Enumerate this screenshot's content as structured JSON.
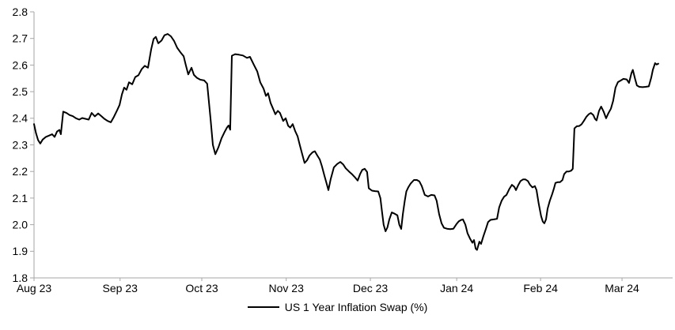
{
  "chart_data": {
    "type": "line",
    "title": "",
    "grid": false,
    "legend_position": "bottom-center",
    "styles": {
      "line_color": "#000000",
      "line_width": 2,
      "axis_color": "#a6a6a6",
      "label_color": "#000000",
      "font_size": 14,
      "background": "#ffffff"
    },
    "x_axis": {
      "kind": "time",
      "range_days": [
        0,
        236
      ],
      "tick_days": [
        0,
        31.8,
        62,
        93.2,
        124.3,
        156.2,
        187.2,
        217.3
      ],
      "tick_labels": [
        "Aug 23",
        "Sep 23",
        "Oct 23",
        "Nov 23",
        "Dec 23",
        "Jan 24",
        "Feb 24",
        "Mar 24"
      ]
    },
    "y_axis": {
      "range": [
        1.8,
        2.8
      ],
      "tick_values": [
        2.8,
        2.7,
        2.6,
        2.5,
        2.4,
        2.3,
        2.2,
        2.1,
        2.0,
        1.9,
        1.8
      ],
      "tick_labels": [
        "2.8",
        "2.7",
        "2.6",
        "2.5",
        "2.4",
        "2.3",
        "2.2",
        "2.1",
        "2.0",
        "1.9",
        "1.8"
      ]
    },
    "series": [
      {
        "name": "US 1 Year Inflation Swap (%)",
        "points": [
          [
            0,
            2.378
          ],
          [
            0.7,
            2.345
          ],
          [
            1.5,
            2.318
          ],
          [
            2.3,
            2.305
          ],
          [
            3.2,
            2.32
          ],
          [
            4.4,
            2.33
          ],
          [
            5.6,
            2.335
          ],
          [
            6.7,
            2.34
          ],
          [
            7.6,
            2.33
          ],
          [
            8.5,
            2.35
          ],
          [
            9.4,
            2.356
          ],
          [
            9.9,
            2.34
          ],
          [
            10.8,
            2.425
          ],
          [
            12,
            2.42
          ],
          [
            13.2,
            2.412
          ],
          [
            14.3,
            2.408
          ],
          [
            15.5,
            2.4
          ],
          [
            16.7,
            2.395
          ],
          [
            17.8,
            2.401
          ],
          [
            19,
            2.398
          ],
          [
            20.2,
            2.395
          ],
          [
            21.3,
            2.42
          ],
          [
            22.5,
            2.407
          ],
          [
            23.7,
            2.418
          ],
          [
            24.9,
            2.408
          ],
          [
            26,
            2.398
          ],
          [
            27.2,
            2.39
          ],
          [
            28.4,
            2.385
          ],
          [
            29.5,
            2.405
          ],
          [
            30.7,
            2.43
          ],
          [
            31.6,
            2.45
          ],
          [
            32.5,
            2.49
          ],
          [
            33.3,
            2.515
          ],
          [
            34.2,
            2.507
          ],
          [
            35.1,
            2.535
          ],
          [
            36.3,
            2.528
          ],
          [
            37.4,
            2.555
          ],
          [
            38.6,
            2.562
          ],
          [
            39.8,
            2.585
          ],
          [
            40.9,
            2.597
          ],
          [
            42.1,
            2.59
          ],
          [
            43.3,
            2.66
          ],
          [
            44.2,
            2.698
          ],
          [
            45,
            2.706
          ],
          [
            45.9,
            2.682
          ],
          [
            47.1,
            2.692
          ],
          [
            48.2,
            2.712
          ],
          [
            49.4,
            2.717
          ],
          [
            50.6,
            2.708
          ],
          [
            51.8,
            2.69
          ],
          [
            52.9,
            2.665
          ],
          [
            54.1,
            2.648
          ],
          [
            55.3,
            2.633
          ],
          [
            56.1,
            2.6
          ],
          [
            57,
            2.565
          ],
          [
            58.2,
            2.59
          ],
          [
            59.1,
            2.563
          ],
          [
            60.2,
            2.552
          ],
          [
            61.4,
            2.545
          ],
          [
            62.9,
            2.542
          ],
          [
            64,
            2.53
          ],
          [
            65.2,
            2.4
          ],
          [
            66.1,
            2.3
          ],
          [
            67,
            2.265
          ],
          [
            68.1,
            2.29
          ],
          [
            69.3,
            2.325
          ],
          [
            70.5,
            2.35
          ],
          [
            71.3,
            2.365
          ],
          [
            71.9,
            2.373
          ],
          [
            72.5,
            2.357
          ],
          [
            73.1,
            2.635
          ],
          [
            74.3,
            2.641
          ],
          [
            75.7,
            2.639
          ],
          [
            77.2,
            2.636
          ],
          [
            78.7,
            2.627
          ],
          [
            79.8,
            2.631
          ],
          [
            81.3,
            2.6
          ],
          [
            82.5,
            2.576
          ],
          [
            83.6,
            2.535
          ],
          [
            84.8,
            2.512
          ],
          [
            85.7,
            2.484
          ],
          [
            86.5,
            2.494
          ],
          [
            87.4,
            2.458
          ],
          [
            88.3,
            2.437
          ],
          [
            89.2,
            2.415
          ],
          [
            90.1,
            2.428
          ],
          [
            90.9,
            2.42
          ],
          [
            92.1,
            2.39
          ],
          [
            93,
            2.4
          ],
          [
            93.9,
            2.372
          ],
          [
            94.7,
            2.365
          ],
          [
            95.6,
            2.378
          ],
          [
            96.5,
            2.352
          ],
          [
            97.4,
            2.332
          ],
          [
            98.2,
            2.3
          ],
          [
            99.1,
            2.265
          ],
          [
            100,
            2.232
          ],
          [
            100.9,
            2.242
          ],
          [
            101.8,
            2.26
          ],
          [
            102.9,
            2.272
          ],
          [
            103.8,
            2.276
          ],
          [
            104.7,
            2.26
          ],
          [
            105.6,
            2.245
          ],
          [
            106.4,
            2.22
          ],
          [
            107.3,
            2.185
          ],
          [
            108.2,
            2.152
          ],
          [
            108.8,
            2.13
          ],
          [
            109.6,
            2.17
          ],
          [
            110.8,
            2.215
          ],
          [
            112,
            2.228
          ],
          [
            113.2,
            2.236
          ],
          [
            114.3,
            2.226
          ],
          [
            115.2,
            2.212
          ],
          [
            116.4,
            2.2
          ],
          [
            117.5,
            2.19
          ],
          [
            118.4,
            2.18
          ],
          [
            119.6,
            2.166
          ],
          [
            120.5,
            2.19
          ],
          [
            121.3,
            2.206
          ],
          [
            122.2,
            2.21
          ],
          [
            123.1,
            2.198
          ],
          [
            123.7,
            2.137
          ],
          [
            124.9,
            2.128
          ],
          [
            126,
            2.126
          ],
          [
            127.2,
            2.125
          ],
          [
            128,
            2.1
          ],
          [
            128.6,
            2.05
          ],
          [
            129.2,
            2.0
          ],
          [
            129.9,
            1.975
          ],
          [
            130.6,
            1.99
          ],
          [
            131.3,
            2.02
          ],
          [
            132.2,
            2.046
          ],
          [
            133.1,
            2.042
          ],
          [
            134.3,
            2.035
          ],
          [
            135,
            2.0
          ],
          [
            135.7,
            1.984
          ],
          [
            136.3,
            2.04
          ],
          [
            137,
            2.09
          ],
          [
            137.6,
            2.125
          ],
          [
            138.3,
            2.14
          ],
          [
            139.2,
            2.155
          ],
          [
            140.4,
            2.168
          ],
          [
            141.5,
            2.168
          ],
          [
            142.4,
            2.163
          ],
          [
            143.3,
            2.145
          ],
          [
            144.4,
            2.112
          ],
          [
            145.6,
            2.106
          ],
          [
            146.8,
            2.112
          ],
          [
            148,
            2.11
          ],
          [
            148.8,
            2.09
          ],
          [
            149.7,
            2.04
          ],
          [
            150.6,
            2.005
          ],
          [
            151.5,
            1.988
          ],
          [
            152.6,
            1.985
          ],
          [
            153.8,
            1.983
          ],
          [
            155,
            1.985
          ],
          [
            156.1,
            2.002
          ],
          [
            157,
            2.013
          ],
          [
            157.9,
            2.018
          ],
          [
            158.5,
            2.02
          ],
          [
            159.4,
            2.0
          ],
          [
            160.2,
            1.968
          ],
          [
            161.1,
            1.948
          ],
          [
            162,
            1.932
          ],
          [
            162.6,
            1.942
          ],
          [
            163.2,
            1.91
          ],
          [
            163.7,
            1.905
          ],
          [
            164.6,
            1.936
          ],
          [
            165.2,
            1.928
          ],
          [
            166.1,
            1.958
          ],
          [
            167,
            1.985
          ],
          [
            167.8,
            2.01
          ],
          [
            168.7,
            2.018
          ],
          [
            169.9,
            2.02
          ],
          [
            171.1,
            2.022
          ],
          [
            171.9,
            2.065
          ],
          [
            172.8,
            2.09
          ],
          [
            173.7,
            2.105
          ],
          [
            174.6,
            2.112
          ],
          [
            175.7,
            2.135
          ],
          [
            176.6,
            2.15
          ],
          [
            177.5,
            2.142
          ],
          [
            178.1,
            2.13
          ],
          [
            179,
            2.15
          ],
          [
            179.8,
            2.164
          ],
          [
            180.7,
            2.17
          ],
          [
            181.6,
            2.17
          ],
          [
            182.5,
            2.164
          ],
          [
            183.3,
            2.15
          ],
          [
            184.2,
            2.14
          ],
          [
            185.1,
            2.145
          ],
          [
            185.7,
            2.13
          ],
          [
            186.5,
            2.08
          ],
          [
            187.4,
            2.032
          ],
          [
            188,
            2.012
          ],
          [
            188.6,
            2.005
          ],
          [
            189.2,
            2.02
          ],
          [
            189.8,
            2.06
          ],
          [
            190.6,
            2.09
          ],
          [
            191.5,
            2.115
          ],
          [
            192.1,
            2.135
          ],
          [
            192.7,
            2.157
          ],
          [
            193.6,
            2.16
          ],
          [
            194.4,
            2.16
          ],
          [
            195.3,
            2.168
          ],
          [
            195.9,
            2.19
          ],
          [
            196.8,
            2.2
          ],
          [
            197.7,
            2.2
          ],
          [
            198.5,
            2.203
          ],
          [
            199.1,
            2.21
          ],
          [
            199.7,
            2.362
          ],
          [
            200.6,
            2.37
          ],
          [
            201.5,
            2.371
          ],
          [
            202.3,
            2.377
          ],
          [
            203.2,
            2.39
          ],
          [
            204.1,
            2.405
          ],
          [
            205,
            2.415
          ],
          [
            205.8,
            2.42
          ],
          [
            206.7,
            2.412
          ],
          [
            207.3,
            2.398
          ],
          [
            207.9,
            2.392
          ],
          [
            208.8,
            2.428
          ],
          [
            209.6,
            2.444
          ],
          [
            210.5,
            2.425
          ],
          [
            211.4,
            2.4
          ],
          [
            212.3,
            2.42
          ],
          [
            213.2,
            2.436
          ],
          [
            214,
            2.465
          ],
          [
            214.9,
            2.515
          ],
          [
            215.8,
            2.536
          ],
          [
            217,
            2.543
          ],
          [
            217.8,
            2.548
          ],
          [
            219,
            2.546
          ],
          [
            219.9,
            2.533
          ],
          [
            220.8,
            2.57
          ],
          [
            221.3,
            2.582
          ],
          [
            222.2,
            2.545
          ],
          [
            222.8,
            2.523
          ],
          [
            223.7,
            2.518
          ],
          [
            224.9,
            2.517
          ],
          [
            226,
            2.518
          ],
          [
            227.2,
            2.52
          ],
          [
            228.1,
            2.553
          ],
          [
            228.7,
            2.582
          ],
          [
            229.2,
            2.597
          ],
          [
            229.5,
            2.607
          ],
          [
            230.1,
            2.602
          ],
          [
            230.7,
            2.605
          ]
        ]
      }
    ]
  },
  "legend": {
    "label": "US 1 Year Inflation Swap (%)"
  }
}
